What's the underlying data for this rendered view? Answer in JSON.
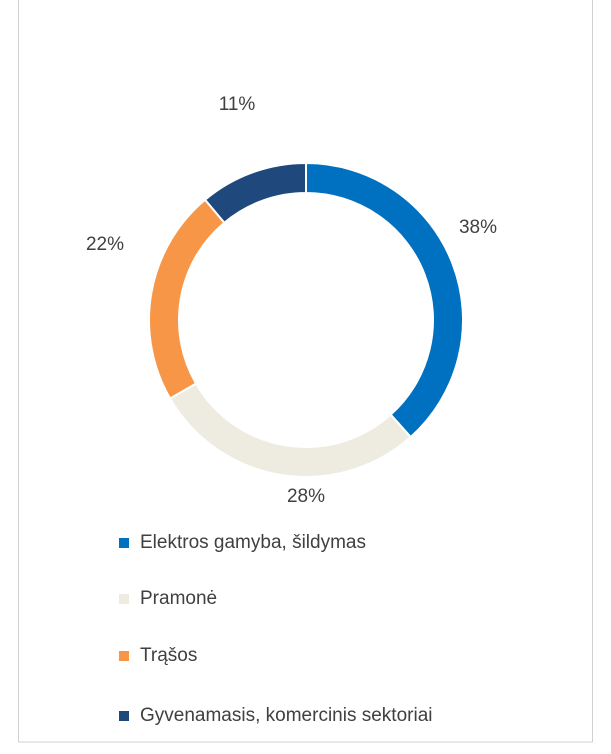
{
  "chart_data": {
    "type": "donut",
    "categories": [
      "Elektros gamyba, šildymas",
      "Pramonė",
      "Trąšos",
      "Gyvenamasis, komercinis sektoriai"
    ],
    "values": [
      38,
      28,
      22,
      11
    ],
    "value_labels": [
      "38%",
      "28%",
      "22%",
      "11%"
    ],
    "colors": [
      "#0070c0",
      "#eeece1",
      "#f79646",
      "#1f497d"
    ],
    "legend": "bottom"
  }
}
